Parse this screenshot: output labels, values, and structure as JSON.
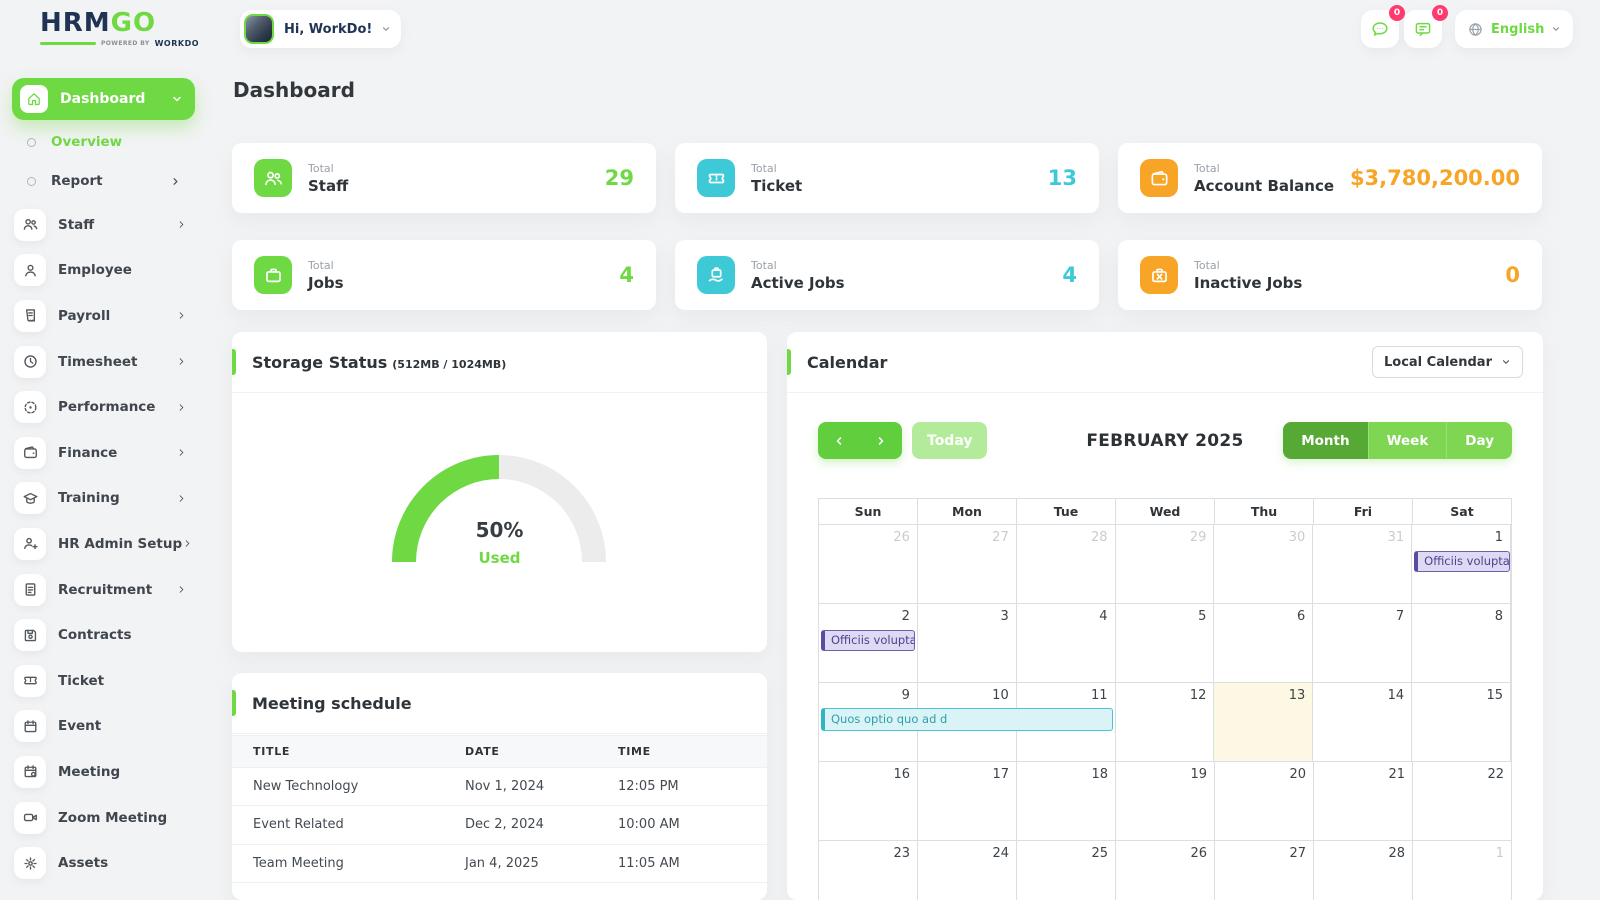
{
  "brand": {
    "name_primary": "HRM",
    "name_accent": "GO",
    "powered_by": "Powered By",
    "powered_brand": "WORKDO"
  },
  "header": {
    "greeting": "Hi, WorkDo!",
    "chat_badge": "0",
    "mail_badge": "0",
    "language": "English"
  },
  "sidebar": {
    "main": {
      "label": "Dashboard",
      "icon": "home-icon"
    },
    "sub": [
      {
        "label": "Overview",
        "active": true,
        "chevron": false
      },
      {
        "label": "Report",
        "active": false,
        "chevron": true
      }
    ],
    "items": [
      {
        "label": "Staff",
        "icon": "users-icon",
        "chevron": true
      },
      {
        "label": "Employee",
        "icon": "user-icon",
        "chevron": false
      },
      {
        "label": "Payroll",
        "icon": "receipt-icon",
        "chevron": true
      },
      {
        "label": "Timesheet",
        "icon": "clock-icon",
        "chevron": true
      },
      {
        "label": "Performance",
        "icon": "target-icon",
        "chevron": true
      },
      {
        "label": "Finance",
        "icon": "wallet-icon",
        "chevron": true
      },
      {
        "label": "Training",
        "icon": "graduation-cap-icon",
        "chevron": true
      },
      {
        "label": "HR Admin Setup",
        "icon": "user-plus-icon",
        "chevron": true
      },
      {
        "label": "Recruitment",
        "icon": "scroll-icon",
        "chevron": true
      },
      {
        "label": "Contracts",
        "icon": "contract-icon",
        "chevron": false
      },
      {
        "label": "Ticket",
        "icon": "ticket-icon",
        "chevron": false
      },
      {
        "label": "Event",
        "icon": "calendar-icon",
        "chevron": false
      },
      {
        "label": "Meeting",
        "icon": "calendar-gear-icon",
        "chevron": false
      },
      {
        "label": "Zoom Meeting",
        "icon": "video-icon",
        "chevron": false
      },
      {
        "label": "Assets",
        "icon": "gear-icon",
        "chevron": false
      }
    ]
  },
  "page": {
    "title": "Dashboard"
  },
  "stat_cards": [
    {
      "prefix": "Total",
      "label": "Staff",
      "value": "29",
      "accent": "#6fd943",
      "icon": "users-icon"
    },
    {
      "prefix": "Total",
      "label": "Ticket",
      "value": "13",
      "accent": "#3ec9d6",
      "icon": "ticket-icon"
    },
    {
      "prefix": "Total",
      "label": "Account Balance",
      "value": "$3,780,200.00",
      "accent": "#f8a427",
      "icon": "wallet-icon"
    },
    {
      "prefix": "Total",
      "label": "Jobs",
      "value": "4",
      "accent": "#6fd943",
      "icon": "briefcase-icon"
    },
    {
      "prefix": "Total",
      "label": "Active Jobs",
      "value": "4",
      "accent": "#3ec9d6",
      "icon": "briefcase-hand-icon"
    },
    {
      "prefix": "Total",
      "label": "Inactive Jobs",
      "value": "0",
      "accent": "#f8a427",
      "icon": "briefcase-x-icon"
    }
  ],
  "storage": {
    "title": "Storage Status",
    "subtitle": "(512MB / 1024MB)",
    "percent": 50,
    "percent_label": "50%",
    "used_label": "Used"
  },
  "meeting": {
    "title": "Meeting schedule",
    "columns": [
      "TITLE",
      "DATE",
      "TIME"
    ],
    "rows": [
      {
        "title": "New Technology",
        "date": "Nov 1, 2024",
        "time": "12:05 PM"
      },
      {
        "title": "Event Related",
        "date": "Dec 2, 2024",
        "time": "10:00 AM"
      },
      {
        "title": "Team Meeting",
        "date": "Jan 4, 2025",
        "time": "11:05 AM"
      }
    ]
  },
  "calendar": {
    "title": "Calendar",
    "select_label": "Local Calendar",
    "toolbar": {
      "today": "Today",
      "month_title": "FEBRUARY 2025",
      "views": [
        "Month",
        "Week",
        "Day"
      ],
      "active_view": "Month"
    },
    "weekdays": [
      "Sun",
      "Mon",
      "Tue",
      "Wed",
      "Thu",
      "Fri",
      "Sat"
    ],
    "weeks": [
      {
        "days": [
          {
            "d": "26",
            "muted": true
          },
          {
            "d": "27",
            "muted": true
          },
          {
            "d": "28",
            "muted": true
          },
          {
            "d": "29",
            "muted": true
          },
          {
            "d": "30",
            "muted": true
          },
          {
            "d": "31",
            "muted": true
          },
          {
            "d": "1"
          }
        ]
      },
      {
        "days": [
          {
            "d": "2"
          },
          {
            "d": "3"
          },
          {
            "d": "4"
          },
          {
            "d": "5"
          },
          {
            "d": "6"
          },
          {
            "d": "7"
          },
          {
            "d": "8"
          }
        ]
      },
      {
        "days": [
          {
            "d": "9"
          },
          {
            "d": "10"
          },
          {
            "d": "11"
          },
          {
            "d": "12"
          },
          {
            "d": "13",
            "today": true
          },
          {
            "d": "14"
          },
          {
            "d": "15"
          }
        ]
      },
      {
        "days": [
          {
            "d": "16"
          },
          {
            "d": "17"
          },
          {
            "d": "18"
          },
          {
            "d": "19"
          },
          {
            "d": "20"
          },
          {
            "d": "21"
          },
          {
            "d": "22"
          }
        ]
      },
      {
        "days": [
          {
            "d": "23"
          },
          {
            "d": "24"
          },
          {
            "d": "25"
          },
          {
            "d": "26"
          },
          {
            "d": "27"
          },
          {
            "d": "28"
          },
          {
            "d": "1",
            "muted": true
          }
        ]
      }
    ],
    "events": [
      {
        "title": "Officiis voluptas c",
        "week": 0,
        "day": 6,
        "span": 1,
        "color": "purple",
        "flush_right": true
      },
      {
        "title": "Officiis voluptas c",
        "week": 1,
        "day": 0,
        "span": 1,
        "color": "purple",
        "flush_right": false
      },
      {
        "title": "Quos optio quo ad d",
        "week": 2,
        "day": 0,
        "span": 3,
        "color": "cyan",
        "flush_right": false
      }
    ]
  },
  "colors": {
    "brand_green": "#6fd943",
    "dark_green": "#56a934",
    "light_green": "#7ed653",
    "pale_green": "#b2ec9b",
    "cyan": "#3ec9d6",
    "orange": "#f8a427",
    "badge_pink": "#ff3a6e",
    "today_bg": "#fcf8e3",
    "event_purple_bg": "#dedaf3",
    "event_purple_border": "#564d9e",
    "event_purple_text": "#4a4390",
    "event_cyan_bg": "#d9f3f7",
    "event_cyan_border": "#2fb4c3",
    "event_cyan_text": "#2f9fae"
  }
}
